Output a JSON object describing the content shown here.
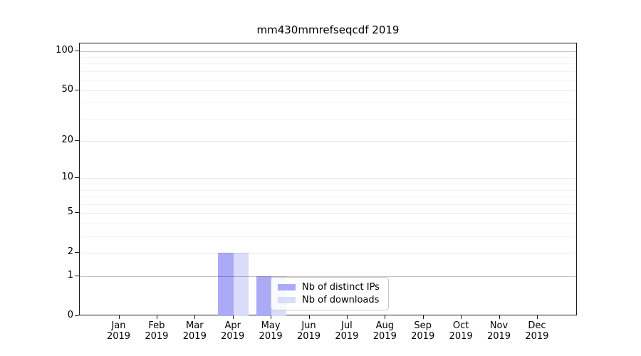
{
  "chart_data": {
    "type": "bar",
    "title": "mm430mmrefseqcdf 2019",
    "categories": [
      "Jan 2019",
      "Feb 2019",
      "Mar 2019",
      "Apr 2019",
      "May 2019",
      "Jun 2019",
      "Jul 2019",
      "Aug 2019",
      "Sep 2019",
      "Oct 2019",
      "Nov 2019",
      "Dec 2019"
    ],
    "series": [
      {
        "name": "Nb of distinct IPs",
        "color": "#aaaaf6",
        "values": [
          0,
          0,
          0,
          2,
          1,
          0,
          0,
          0,
          0,
          0,
          0,
          0
        ]
      },
      {
        "name": "Nb of downloads",
        "color": "#dbdbfa",
        "values": [
          0,
          0,
          0,
          2,
          1,
          0,
          0,
          0,
          0,
          0,
          0,
          0
        ]
      }
    ],
    "xlabel": "",
    "ylabel": "",
    "yscale": "log1p",
    "ylim": [
      0,
      113
    ],
    "ytick_values": [
      0,
      1,
      2,
      5,
      10,
      20,
      50,
      100
    ],
    "ytick_minor_values": [
      3,
      4,
      6,
      7,
      8,
      9,
      30,
      40,
      60,
      70,
      80,
      90
    ],
    "emphasized_gridline_values": [
      1,
      100
    ],
    "grid": "horizontal major and minor gridlines",
    "legend": {
      "position": "inside, lower center-left",
      "items": [
        "Nb of distinct IPs",
        "Nb of downloads"
      ]
    }
  }
}
